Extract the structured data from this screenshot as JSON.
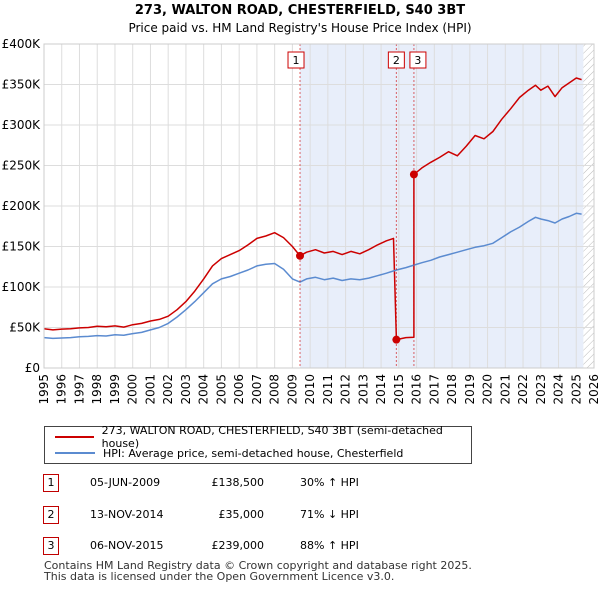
{
  "chart_data": {
    "type": "line",
    "title": "273, WALTON ROAD, CHESTERFIELD, S40 3BT",
    "subtitle": "Price paid vs. HM Land Registry's House Price Index (HPI)",
    "xlim": [
      1995,
      2026
    ],
    "ylim": [
      0,
      400000
    ],
    "x_ticks": [
      "1995",
      "1996",
      "1997",
      "1998",
      "1999",
      "2000",
      "2001",
      "2002",
      "2003",
      "2004",
      "2005",
      "2006",
      "2007",
      "2008",
      "2009",
      "2010",
      "2011",
      "2012",
      "2013",
      "2014",
      "2015",
      "2016",
      "2017",
      "2018",
      "2019",
      "2020",
      "2021",
      "2022",
      "2023",
      "2024",
      "2025",
      "2026"
    ],
    "y_ticks": [
      {
        "value": 0,
        "label": "£0"
      },
      {
        "value": 50000,
        "label": "£50K"
      },
      {
        "value": 100000,
        "label": "£100K"
      },
      {
        "value": 150000,
        "label": "£150K"
      },
      {
        "value": 200000,
        "label": "£200K"
      },
      {
        "value": 250000,
        "label": "£250K"
      },
      {
        "value": 300000,
        "label": "£300K"
      },
      {
        "value": 350000,
        "label": "£350K"
      },
      {
        "value": 400000,
        "label": "£400K"
      }
    ],
    "shaded_range": [
      2009.43,
      2025.4
    ],
    "future_hatch_start": 2025.4,
    "series": [
      {
        "name": "273, WALTON ROAD, CHESTERFIELD, S40 3BT (semi-detached house)",
        "color": "#cc0000",
        "points": [
          [
            1995.0,
            48500
          ],
          [
            1995.5,
            47000
          ],
          [
            1996.0,
            48000
          ],
          [
            1996.5,
            48500
          ],
          [
            1997.0,
            49500
          ],
          [
            1997.5,
            50000
          ],
          [
            1998.0,
            51500
          ],
          [
            1998.5,
            51000
          ],
          [
            1999.0,
            52000
          ],
          [
            1999.5,
            50500
          ],
          [
            2000.0,
            53500
          ],
          [
            2000.5,
            55000
          ],
          [
            2001.0,
            58000
          ],
          [
            2001.5,
            60000
          ],
          [
            2002.0,
            64000
          ],
          [
            2002.5,
            72000
          ],
          [
            2003.0,
            82000
          ],
          [
            2003.5,
            95000
          ],
          [
            2004.0,
            110000
          ],
          [
            2004.5,
            126000
          ],
          [
            2005.0,
            135000
          ],
          [
            2005.5,
            140000
          ],
          [
            2006.0,
            145000
          ],
          [
            2006.5,
            152000
          ],
          [
            2007.0,
            160000
          ],
          [
            2007.5,
            163000
          ],
          [
            2008.0,
            167000
          ],
          [
            2008.5,
            161000
          ],
          [
            2009.0,
            150000
          ],
          [
            2009.43,
            138500
          ],
          [
            2009.8,
            143000
          ],
          [
            2010.3,
            146000
          ],
          [
            2010.8,
            142000
          ],
          [
            2011.3,
            144000
          ],
          [
            2011.8,
            140000
          ],
          [
            2012.3,
            144000
          ],
          [
            2012.8,
            141000
          ],
          [
            2013.3,
            146000
          ],
          [
            2013.8,
            152000
          ],
          [
            2014.3,
            157000
          ],
          [
            2014.7,
            160000
          ],
          [
            2014.86,
            35000
          ],
          [
            2015.4,
            37500
          ],
          [
            2015.85,
            38000
          ],
          [
            2015.85,
            239000
          ],
          [
            2016.3,
            247000
          ],
          [
            2016.8,
            254000
          ],
          [
            2017.3,
            260000
          ],
          [
            2017.8,
            267000
          ],
          [
            2018.3,
            262000
          ],
          [
            2018.8,
            274000
          ],
          [
            2019.3,
            287000
          ],
          [
            2019.8,
            283000
          ],
          [
            2020.3,
            292000
          ],
          [
            2020.8,
            307000
          ],
          [
            2021.3,
            320000
          ],
          [
            2021.8,
            334000
          ],
          [
            2022.3,
            343000
          ],
          [
            2022.7,
            349000
          ],
          [
            2023.0,
            343000
          ],
          [
            2023.4,
            348000
          ],
          [
            2023.8,
            335000
          ],
          [
            2024.2,
            346000
          ],
          [
            2024.6,
            352000
          ],
          [
            2025.0,
            358000
          ],
          [
            2025.3,
            356000
          ]
        ]
      },
      {
        "name": "HPI: Average price, semi-detached house, Chesterfield",
        "color": "#5b8bd0",
        "points": [
          [
            1995.0,
            37500
          ],
          [
            1995.5,
            36500
          ],
          [
            1996.0,
            37000
          ],
          [
            1996.5,
            37500
          ],
          [
            1997.0,
            38500
          ],
          [
            1997.5,
            39000
          ],
          [
            1998.0,
            40000
          ],
          [
            1998.5,
            39500
          ],
          [
            1999.0,
            41000
          ],
          [
            1999.5,
            40500
          ],
          [
            2000.0,
            42500
          ],
          [
            2000.5,
            44000
          ],
          [
            2001.0,
            47000
          ],
          [
            2001.5,
            50000
          ],
          [
            2002.0,
            55000
          ],
          [
            2002.5,
            63000
          ],
          [
            2003.0,
            72000
          ],
          [
            2003.5,
            82000
          ],
          [
            2004.0,
            93000
          ],
          [
            2004.5,
            104000
          ],
          [
            2005.0,
            110000
          ],
          [
            2005.5,
            113000
          ],
          [
            2006.0,
            117000
          ],
          [
            2006.5,
            121000
          ],
          [
            2007.0,
            126000
          ],
          [
            2007.5,
            128000
          ],
          [
            2008.0,
            129000
          ],
          [
            2008.5,
            122000
          ],
          [
            2009.0,
            110000
          ],
          [
            2009.43,
            106000
          ],
          [
            2009.8,
            110000
          ],
          [
            2010.3,
            112000
          ],
          [
            2010.8,
            109000
          ],
          [
            2011.3,
            111000
          ],
          [
            2011.8,
            108000
          ],
          [
            2012.3,
            110000
          ],
          [
            2012.8,
            109000
          ],
          [
            2013.3,
            111000
          ],
          [
            2013.8,
            114000
          ],
          [
            2014.3,
            117000
          ],
          [
            2014.86,
            121000
          ],
          [
            2015.4,
            124000
          ],
          [
            2015.85,
            127000
          ],
          [
            2016.3,
            130000
          ],
          [
            2016.8,
            133000
          ],
          [
            2017.3,
            137000
          ],
          [
            2017.8,
            140000
          ],
          [
            2018.3,
            143000
          ],
          [
            2018.8,
            146000
          ],
          [
            2019.3,
            149000
          ],
          [
            2019.8,
            151000
          ],
          [
            2020.3,
            154000
          ],
          [
            2020.8,
            161000
          ],
          [
            2021.3,
            168000
          ],
          [
            2021.8,
            174000
          ],
          [
            2022.3,
            181000
          ],
          [
            2022.7,
            186000
          ],
          [
            2023.0,
            184000
          ],
          [
            2023.4,
            182000
          ],
          [
            2023.8,
            179000
          ],
          [
            2024.2,
            184000
          ],
          [
            2024.6,
            187000
          ],
          [
            2025.0,
            191000
          ],
          [
            2025.3,
            190000
          ]
        ]
      }
    ],
    "sales": [
      {
        "label": "1",
        "x": 2009.43,
        "price": 138500
      },
      {
        "label": "2",
        "x": 2014.86,
        "price": 35000
      },
      {
        "label": "3",
        "x": 2015.85,
        "price": 239000
      }
    ]
  },
  "legend": {
    "property_label": "273, WALTON ROAD, CHESTERFIELD, S40 3BT (semi-detached house)",
    "hpi_label": "HPI: Average price, semi-detached house, Chesterfield"
  },
  "transactions": [
    {
      "num": "1",
      "date": "05-JUN-2009",
      "price": "£138,500",
      "hpi": "30% ↑ HPI"
    },
    {
      "num": "2",
      "date": "13-NOV-2014",
      "price": "£35,000",
      "hpi": "71% ↓ HPI"
    },
    {
      "num": "3",
      "date": "06-NOV-2015",
      "price": "£239,000",
      "hpi": "88% ↑ HPI"
    }
  ],
  "footer": {
    "line1": "Contains HM Land Registry data © Crown copyright and database right 2025.",
    "line2": "This data is licensed under the Open Government Licence v3.0."
  },
  "colors": {
    "property": "#cc0000",
    "hpi": "#5b8bd0",
    "shade": "#e8eefa"
  }
}
